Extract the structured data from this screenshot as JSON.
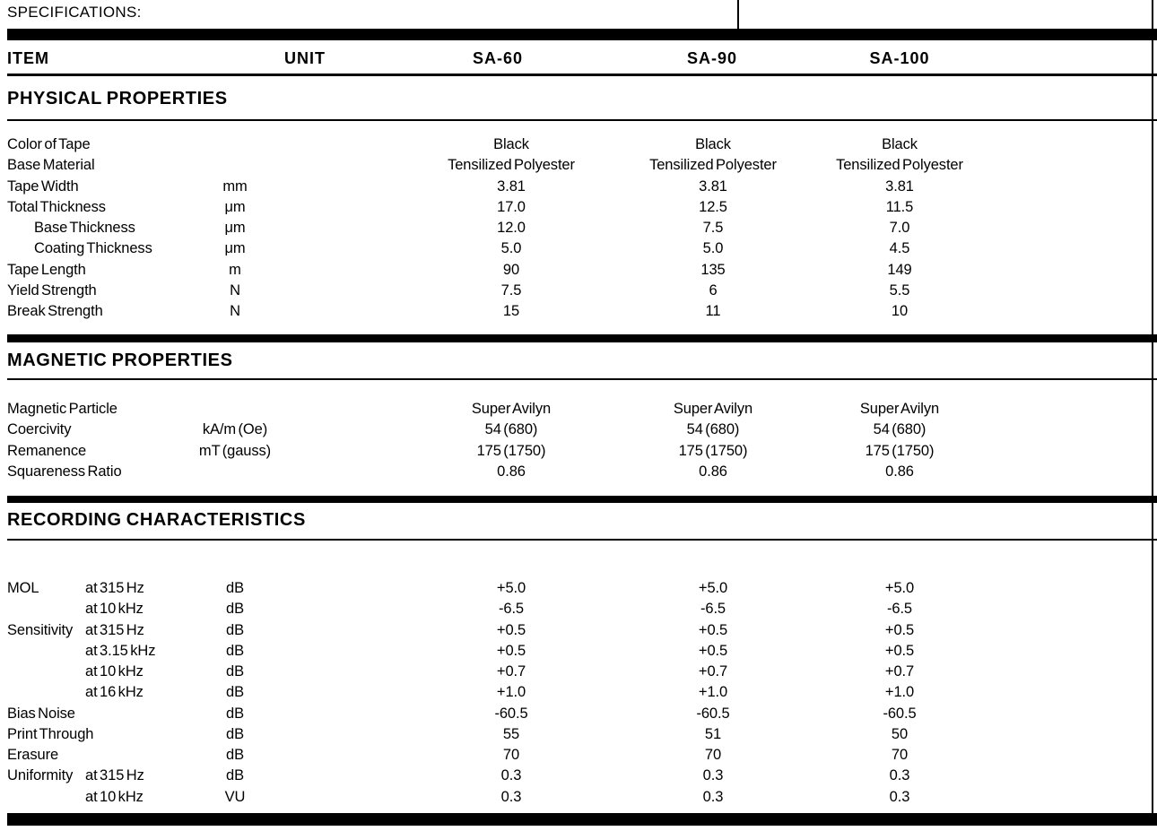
{
  "page": {
    "label": "SPECIFICATIONS:"
  },
  "header": {
    "item": "ITEM",
    "unit": "UNIT",
    "sa60": "SA-60",
    "sa90": "SA-90",
    "sa100": "SA-100"
  },
  "colors": {
    "ink": "#000000",
    "paper": "#ffffff"
  },
  "sections": [
    {
      "title": "PHYSICAL PROPERTIES",
      "rows": [
        {
          "item": "Color of Tape",
          "sub": "",
          "unit": "",
          "v": [
            "Black",
            "Black",
            "Black"
          ]
        },
        {
          "item": "Base Material",
          "sub": "",
          "unit": "",
          "v": [
            "Tensilized Polyester",
            "Tensilized Polyester",
            "Tensilized Polyester"
          ]
        },
        {
          "item": "Tape Width",
          "sub": "",
          "unit": "mm",
          "v": [
            "3.81",
            "3.81",
            "3.81"
          ]
        },
        {
          "item": "Total Thickness",
          "sub": "",
          "unit": "μm",
          "v": [
            "17.0",
            "12.5",
            "11.5"
          ]
        },
        {
          "item": "Base Thickness",
          "indent": true,
          "sub": "",
          "unit": "μm",
          "v": [
            "12.0",
            "7.5",
            "7.0"
          ]
        },
        {
          "item": "Coating Thickness",
          "indent": true,
          "sub": "",
          "unit": "μm",
          "v": [
            "5.0",
            "5.0",
            "4.5"
          ]
        },
        {
          "item": "Tape Length",
          "sub": "",
          "unit": "m",
          "v": [
            "90",
            "135",
            "149"
          ]
        },
        {
          "item": "Yield Strength",
          "sub": "",
          "unit": "N",
          "v": [
            "7.5",
            "6",
            "5.5"
          ]
        },
        {
          "item": "Break Strength",
          "sub": "",
          "unit": "N",
          "v": [
            "15",
            "11",
            "10"
          ]
        }
      ]
    },
    {
      "title": "MAGNETIC PROPERTIES",
      "rows": [
        {
          "item": "Magnetic Particle",
          "sub": "",
          "unit": "",
          "v": [
            "Super Avilyn",
            "Super Avilyn",
            "Super Avilyn"
          ]
        },
        {
          "item": "Coercivity",
          "sub": "",
          "unit": "kA/m (Oe)",
          "v": [
            "54 (680)",
            "54 (680)",
            "54 (680)"
          ]
        },
        {
          "item": "Remanence",
          "sub": "",
          "unit": "mT (gauss)",
          "v": [
            "175 (1750)",
            "175 (1750)",
            "175 (1750)"
          ]
        },
        {
          "item": "Squareness Ratio",
          "sub": "",
          "unit": "",
          "v": [
            "0.86",
            "0.86",
            "0.86"
          ]
        }
      ]
    },
    {
      "title": "RECORDING CHARACTERISTICS",
      "rows": [
        {
          "item": "MOL",
          "sub": "at 315 Hz",
          "unit": "dB",
          "v": [
            "+5.0",
            "+5.0",
            "+5.0"
          ]
        },
        {
          "item": "",
          "sub": "at 10 kHz",
          "unit": "dB",
          "v": [
            "-6.5",
            "-6.5",
            "-6.5"
          ]
        },
        {
          "item": "Sensitivity",
          "sub": "at 315 Hz",
          "unit": "dB",
          "v": [
            "+0.5",
            "+0.5",
            "+0.5"
          ]
        },
        {
          "item": "",
          "sub": "at 3.15 kHz",
          "unit": "dB",
          "v": [
            "+0.5",
            "+0.5",
            "+0.5"
          ]
        },
        {
          "item": "",
          "sub": "at 10 kHz",
          "unit": "dB",
          "v": [
            "+0.7",
            "+0.7",
            "+0.7"
          ]
        },
        {
          "item": "",
          "sub": "at 16 kHz",
          "unit": "dB",
          "v": [
            "+1.0",
            "+1.0",
            "+1.0"
          ]
        },
        {
          "item": "Bias Noise",
          "sub": "",
          "unit": "dB",
          "v": [
            "-60.5",
            "-60.5",
            "-60.5"
          ]
        },
        {
          "item": "Print Through",
          "sub": "",
          "unit": "dB",
          "v": [
            "55",
            "51",
            "50"
          ]
        },
        {
          "item": "Erasure",
          "sub": "",
          "unit": "dB",
          "v": [
            "70",
            "70",
            "70"
          ]
        },
        {
          "item": "Uniformity",
          "sub": "at 315 Hz",
          "unit": "dB",
          "v": [
            "0.3",
            "0.3",
            "0.3"
          ]
        },
        {
          "item": "",
          "sub": "at 10 kHz",
          "unit": "VU",
          "v": [
            "0.3",
            "0.3",
            "0.3"
          ]
        }
      ]
    }
  ]
}
